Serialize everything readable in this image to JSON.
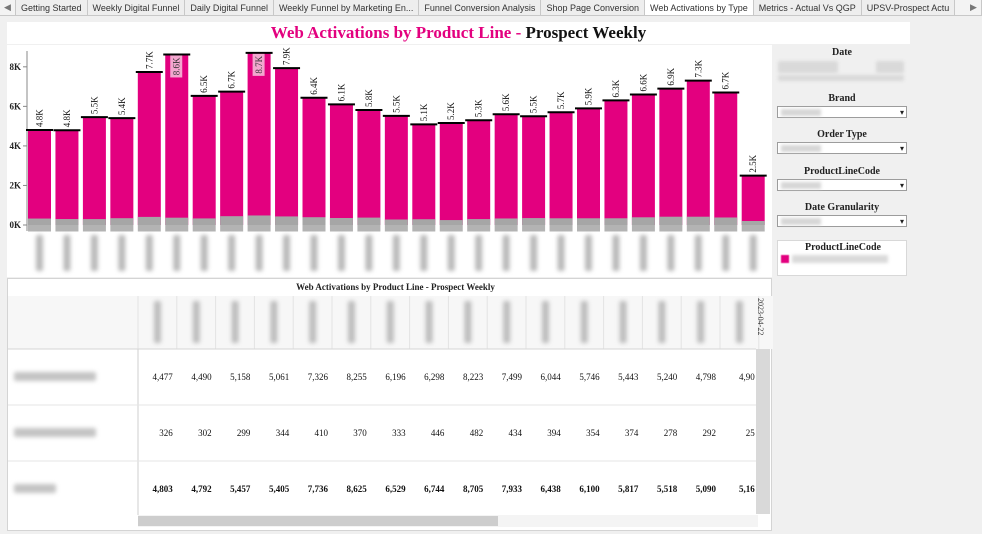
{
  "tabs": [
    "Getting Started",
    "Weekly Digital Funnel",
    "Daily Digital Funnel",
    "Weekly Funnel by Marketing En...",
    "Funnel Conversion Analysis",
    "Shop Page Conversion",
    "Web Activations by Type",
    "Metrics - Actual Vs QGP",
    "UPSV-Prospect Actu"
  ],
  "active_tab": "Web Activations by Type",
  "title_pink": "Web Activations by Product Line -",
  "title_black": "Prospect Weekly",
  "filters": {
    "date_title": "Date",
    "brand_title": "Brand",
    "order_type_title": "Order Type",
    "product_line_code_title": "ProductLineCode",
    "date_granularity_title": "Date Granularity",
    "legend_title": "ProductLineCode"
  },
  "colors": {
    "primary": "#e3007f",
    "secondary": "#a6a6a6",
    "total_line": "#000000"
  },
  "table": {
    "title": "Web Activations by Product Line - Prospect Weekly",
    "header_partial_date": "2023-04-22",
    "rows": [
      {
        "values": [
          "4,477",
          "4,490",
          "5,158",
          "5,061",
          "7,326",
          "8,255",
          "6,196",
          "6,298",
          "8,223",
          "7,499",
          "6,044",
          "5,746",
          "5,443",
          "5,240",
          "4,798",
          "4,90"
        ]
      },
      {
        "values": [
          "326",
          "302",
          "299",
          "344",
          "410",
          "370",
          "333",
          "446",
          "482",
          "434",
          "394",
          "354",
          "374",
          "278",
          "292",
          "25"
        ]
      },
      {
        "values": [
          "4,803",
          "4,792",
          "5,457",
          "5,405",
          "7,736",
          "8,625",
          "6,529",
          "6,744",
          "8,705",
          "7,933",
          "6,438",
          "6,100",
          "5,817",
          "5,518",
          "5,090",
          "5,16"
        ]
      }
    ]
  },
  "chart_data": {
    "type": "bar",
    "stacked": true,
    "y_ticks": [
      "0K",
      "2K",
      "4K",
      "6K",
      "8K"
    ],
    "ylim": [
      0,
      8800
    ],
    "gridlines": false,
    "total_labels": [
      "4.8K",
      "4.8K",
      "5.5K",
      "5.4K",
      "7.7K",
      "8.6K",
      "6.5K",
      "6.7K",
      "8.7K",
      "7.9K",
      "6.4K",
      "6.1K",
      "5.8K",
      "5.5K",
      "5.1K",
      "5.2K",
      "5.3K",
      "5.6K",
      "5.5K",
      "5.7K",
      "5.9K",
      "6.3K",
      "6.6K",
      "6.9K",
      "7.3K",
      "6.7K",
      "2.5K"
    ],
    "series": [
      {
        "values": [
          4477,
          4490,
          5158,
          5061,
          7326,
          8255,
          6196,
          6298,
          8223,
          7499,
          6044,
          5746,
          5443,
          5240,
          4798,
          4900,
          5000,
          5270,
          5150,
          5360,
          5560,
          5960,
          6210,
          6480,
          6880,
          6320,
          2380
        ]
      },
      {
        "values": [
          326,
          302,
          299,
          344,
          410,
          370,
          333,
          446,
          482,
          434,
          394,
          354,
          374,
          278,
          292,
          250,
          300,
          330,
          350,
          340,
          340,
          340,
          390,
          420,
          420,
          380,
          120
        ]
      }
    ],
    "totals": [
      4803,
      4792,
      5457,
      5405,
      7736,
      8625,
      6529,
      6744,
      8705,
      7933,
      6438,
      6100,
      5817,
      5518,
      5090,
      5160,
      5300,
      5600,
      5500,
      5700,
      5900,
      6300,
      6600,
      6900,
      7300,
      6700,
      2500
    ]
  }
}
